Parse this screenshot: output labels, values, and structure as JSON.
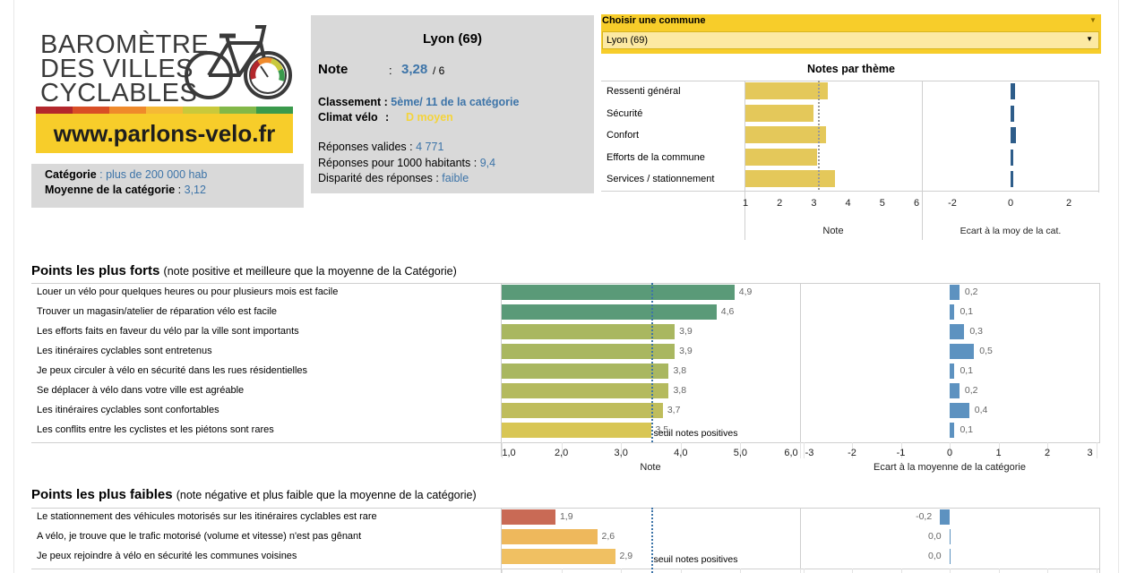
{
  "logo": {
    "line1": "BAROMÈTRE",
    "line2": "DES VILLES",
    "line3": "CYCLABLES",
    "url": "www.parlons-velo.fr",
    "rainbow_colors": [
      "#b3272c",
      "#d94e26",
      "#ef8a2b",
      "#f5b936",
      "#c9c93b",
      "#83b848",
      "#3a9a4c"
    ]
  },
  "category": {
    "label": "Catégorie",
    "value": "plus de 200 000  hab",
    "avg_label": "Moyenne de la catégorie",
    "avg_value": "3,12"
  },
  "city": {
    "name": "Lyon (69)",
    "note_label": "Note",
    "note_colon": ":",
    "note_value": "3,28",
    "note_max": "/ 6",
    "rank_label": "Classement :",
    "rank_value": "5ème/ 11 de la catégorie",
    "climate_label": "Climat vélo",
    "climate_colon": ":",
    "climate_value": "D  moyen",
    "valid_label": "Réponses valides :",
    "valid_value": "4 771",
    "per1000_label": "Réponses pour 1000 habitants :",
    "per1000_value": "9,4",
    "disparity_label": "Disparité des réponses :",
    "disparity_value": "faible"
  },
  "selector": {
    "label": "Choisir une commune",
    "value": "Lyon (69)"
  },
  "themes": {
    "title": "Notes par thème",
    "items": [
      {
        "label": "Ressenti général",
        "note": 3.42,
        "ecart": 0.15
      },
      {
        "label": "Sécurité",
        "note": 2.98,
        "ecart": 0.12
      },
      {
        "label": "Confort",
        "note": 3.35,
        "ecart": 0.17
      },
      {
        "label": "Efforts de la commune",
        "note": 3.09,
        "ecart": 0.05
      },
      {
        "label": "Services  /  stationnement",
        "note": 3.62,
        "ecart": 0.08
      }
    ],
    "note_ticks": [
      "1",
      "2",
      "3",
      "4",
      "5",
      "6"
    ],
    "ecart_ticks": [
      "-2",
      "0",
      "2"
    ],
    "note_axis_title": "Note",
    "ecart_axis_title": "Ecart à la moy de la cat."
  },
  "strong": {
    "title": "Points les plus forts",
    "subtitle": "(note positive et meilleure que la moyenne de la Catégorie)",
    "threshold_label": "seuil notes positives",
    "items": [
      {
        "label": "Louer un vélo pour quelques heures ou pour plusieurs mois est facile",
        "note": 4.9,
        "note_text": "4,9",
        "ecart": 0.2,
        "ecart_text": "0,2",
        "color": "#5a9a78"
      },
      {
        "label": "Trouver un magasin/atelier de réparation vélo est facile",
        "note": 4.6,
        "note_text": "4,6",
        "ecart": 0.1,
        "ecart_text": "0,1",
        "color": "#5a9a78"
      },
      {
        "label": "Les efforts faits en faveur du vélo par la ville sont importants",
        "note": 3.9,
        "note_text": "3,9",
        "ecart": 0.3,
        "ecart_text": "0,3",
        "color": "#a9b760"
      },
      {
        "label": "Les itinéraires cyclables sont entretenus",
        "note": 3.9,
        "note_text": "3,9",
        "ecart": 0.5,
        "ecart_text": "0,5",
        "color": "#a9b760"
      },
      {
        "label": "Je peux circuler à vélo en sécurité dans les rues résidentielles",
        "note": 3.8,
        "note_text": "3,8",
        "ecart": 0.1,
        "ecart_text": "0,1",
        "color": "#a9b760"
      },
      {
        "label": "Se déplacer à vélo dans votre ville est agréable",
        "note": 3.8,
        "note_text": "3,8",
        "ecart": 0.2,
        "ecart_text": "0,2",
        "color": "#b4ba5e"
      },
      {
        "label": "Les itinéraires cyclables sont confortables",
        "note": 3.7,
        "note_text": "3,7",
        "ecart": 0.4,
        "ecart_text": "0,4",
        "color": "#bfbd5c"
      },
      {
        "label": "Les conflits entre les cyclistes et les piétons sont rares",
        "note": 3.5,
        "note_text": "3,5",
        "ecart": 0.1,
        "ecart_text": "0,1",
        "color": "#d8c655"
      }
    ],
    "note_ticks": [
      "1,0",
      "2,0",
      "3,0",
      "4,0",
      "5,0",
      "6,0"
    ],
    "ecart_ticks": [
      "-3",
      "-2",
      "-1",
      "0",
      "1",
      "2",
      "3"
    ],
    "note_axis_title": "Note",
    "ecart_axis_title": "Ecart à la moyenne de la catégorie"
  },
  "weak": {
    "title": "Points les plus faibles",
    "subtitle": "(note négative et plus faible que la moyenne de la catégorie)",
    "threshold_label": "seuil notes positives",
    "items": [
      {
        "label": "Le stationnement des véhicules motorisés sur les itinéraires cyclables est rare",
        "note": 1.9,
        "note_text": "1,9",
        "ecart": -0.2,
        "ecart_text": "-0,2",
        "color": "#c96a55"
      },
      {
        "label": "A vélo, je trouve que le trafic motorisé (volume et vitesse) n'est pas gênant",
        "note": 2.6,
        "note_text": "2,6",
        "ecart": 0.0,
        "ecart_text": "0,0",
        "color": "#eeb85c"
      },
      {
        "label": "Je peux rejoindre à vélo en sécurité les communes voisines",
        "note": 2.9,
        "note_text": "2,9",
        "ecart": 0.0,
        "ecart_text": "0,0",
        "color": "#f0c062"
      }
    ]
  }
}
